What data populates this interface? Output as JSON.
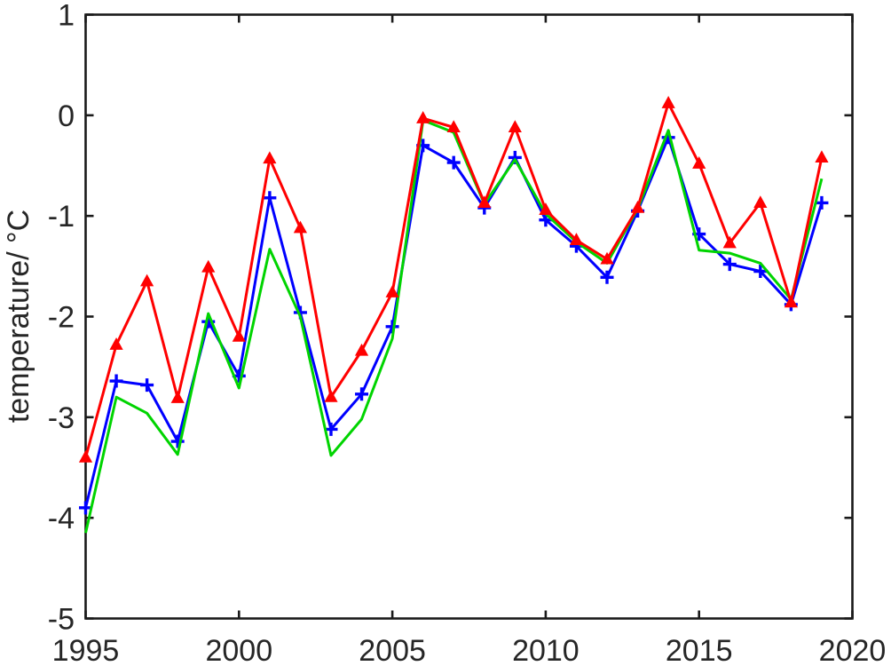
{
  "figure": {
    "background": "#ffffff",
    "axis_color": "#1a1a1a",
    "text_color": "#262626"
  },
  "chart_data": {
    "type": "line",
    "title": "",
    "xlabel": "",
    "ylabel": "temperature/ °C",
    "xlim": [
      1995,
      2020
    ],
    "ylim": [
      -5,
      1
    ],
    "xticks": [
      1995,
      2000,
      2005,
      2010,
      2015,
      2020
    ],
    "x_tick_labels": [
      "1995",
      "2000",
      "2005",
      "2010",
      "2015",
      "2020"
    ],
    "yticks": [
      1,
      0,
      -1,
      -2,
      -3,
      -4,
      -5
    ],
    "y_tick_labels": [
      "1",
      "0",
      "-1",
      "-2",
      "-3",
      "-4",
      "-5"
    ],
    "grid": false,
    "legend": "none",
    "x": [
      1995,
      1996,
      1997,
      1998,
      1999,
      2000,
      2001,
      2002,
      2003,
      2004,
      2005,
      2006,
      2007,
      2008,
      2009,
      2010,
      2011,
      2012,
      2013,
      2014,
      2015,
      2016,
      2017,
      2018,
      2019
    ],
    "series": [
      {
        "name": "blue-plus-series",
        "color": "#0000ff",
        "marker": "plus",
        "values": [
          -3.9,
          -2.64,
          -2.68,
          -3.24,
          -2.05,
          -2.59,
          -0.82,
          -1.96,
          -3.12,
          -2.77,
          -2.1,
          -0.3,
          -0.47,
          -0.92,
          -0.42,
          -1.04,
          -1.3,
          -1.61,
          -0.95,
          -0.22,
          -1.18,
          -1.48,
          -1.55,
          -1.88,
          -0.87
        ]
      },
      {
        "name": "green-line-series",
        "color": "#00d400",
        "marker": "none",
        "values": [
          -4.15,
          -2.8,
          -2.96,
          -3.37,
          -1.97,
          -2.71,
          -1.33,
          -2.0,
          -3.38,
          -3.02,
          -2.22,
          -0.05,
          -0.17,
          -0.88,
          -0.44,
          -0.98,
          -1.26,
          -1.47,
          -0.93,
          -0.15,
          -1.34,
          -1.37,
          -1.47,
          -1.83,
          -0.63
        ]
      },
      {
        "name": "red-triangle-series",
        "color": "#ff0000",
        "marker": "triangle",
        "values": [
          -3.4,
          -2.28,
          -1.65,
          -2.81,
          -1.51,
          -2.2,
          -0.43,
          -1.12,
          -2.8,
          -2.34,
          -1.76,
          -0.03,
          -0.12,
          -0.87,
          -0.12,
          -0.94,
          -1.24,
          -1.43,
          -0.92,
          0.12,
          -0.48,
          -1.27,
          -0.87,
          -1.86,
          -0.42
        ]
      }
    ]
  }
}
